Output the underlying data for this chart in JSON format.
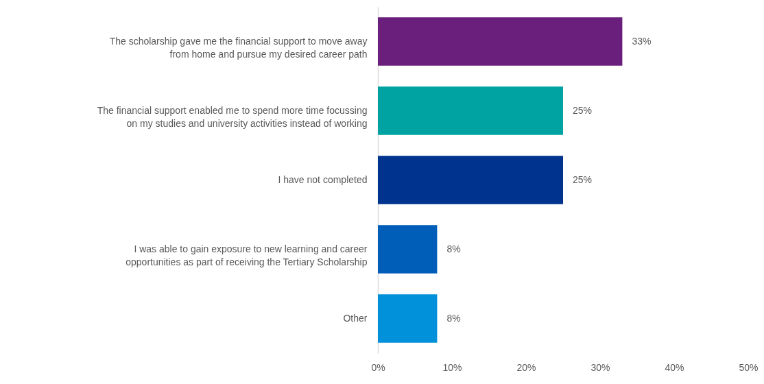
{
  "chart_data": {
    "type": "bar",
    "orientation": "horizontal",
    "categories": [
      "The scholarship gave me the financial support to move away from home and pursue my desired career path",
      "The financial support enabled me to spend more time focussing on my studies and university activities instead of working",
      "I have not completed",
      "I was able to gain exposure to new learning and career opportunities as part of receiving the Tertiary Scholarship",
      "Other"
    ],
    "values": [
      33,
      25,
      25,
      8,
      8
    ],
    "colors": [
      "#6b1f7c",
      "#00a3a1",
      "#00338d",
      "#005eb8",
      "#0091da"
    ],
    "value_labels": [
      "33%",
      "25%",
      "25%",
      "8%",
      "8%"
    ],
    "xlim": [
      0,
      50
    ],
    "xticks": [
      {
        "value": 0,
        "label": "0%"
      },
      {
        "value": 10,
        "label": "10%"
      },
      {
        "value": 20,
        "label": "20%"
      },
      {
        "value": 30,
        "label": "30%"
      },
      {
        "value": 40,
        "label": "40%"
      },
      {
        "value": 50,
        "label": "50%"
      }
    ],
    "grid": false
  }
}
